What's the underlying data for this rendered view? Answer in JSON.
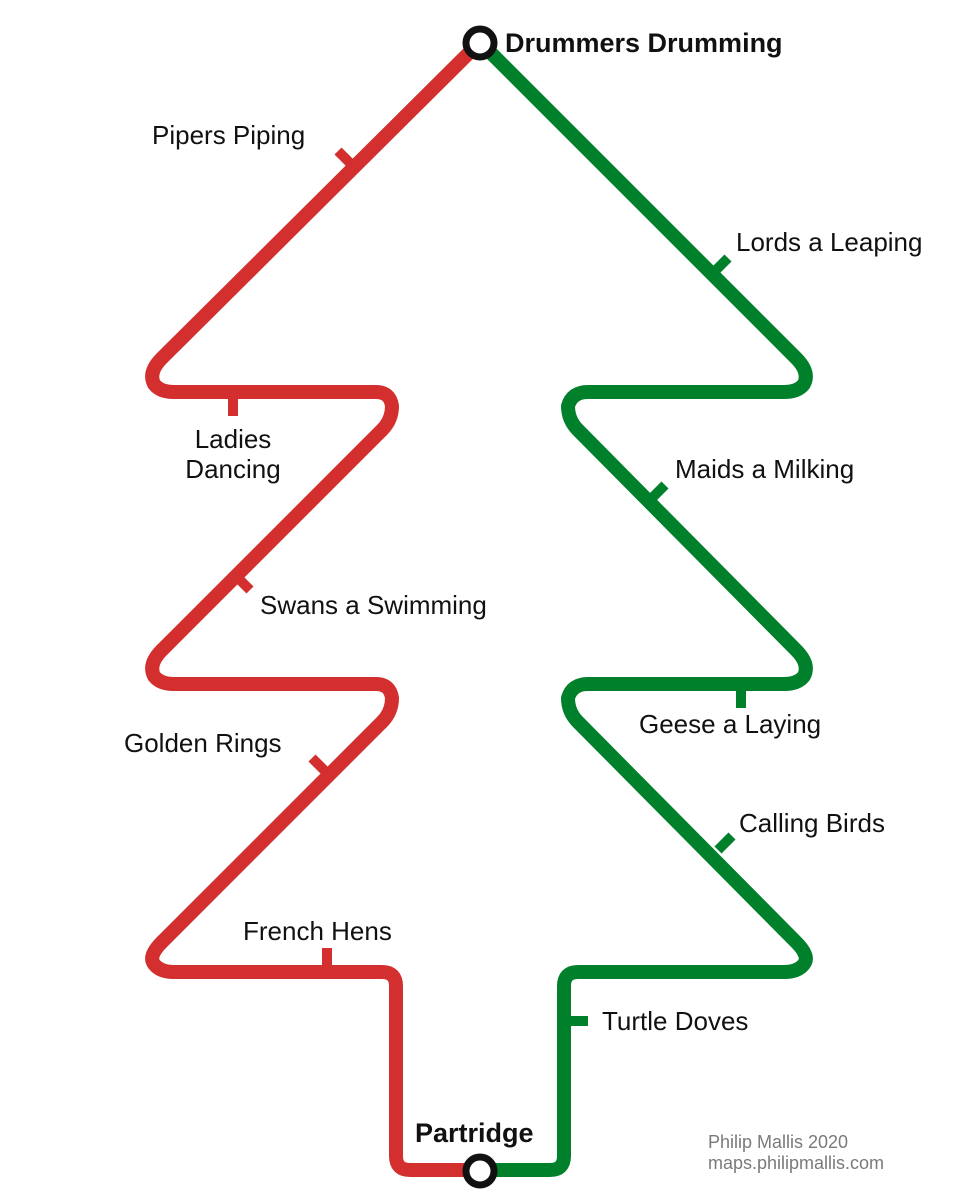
{
  "colors": {
    "red_line": "#d32f2f",
    "green_line": "#00802b",
    "terminal_stroke": "#111111",
    "text": "#111111",
    "credit_text": "#7a7a7a"
  },
  "lines": {
    "red": "red-line",
    "green": "green-line"
  },
  "terminals": {
    "top": "Drummers Drumming",
    "bottom": "Partridge"
  },
  "stations": {
    "pipers_piping": "Pipers Piping",
    "lords_a_leaping": "Lords a Leaping",
    "ladies_dancing_line1": "Ladies",
    "ladies_dancing_line2": "Dancing",
    "maids_a_milking": "Maids a Milking",
    "swans_a_swimming": "Swans a Swimming",
    "geese_a_laying": "Geese a Laying",
    "golden_rings": "Golden Rings",
    "calling_birds": "Calling Birds",
    "french_hens": "French Hens",
    "turtle_doves": "Turtle Doves"
  },
  "credit": {
    "author": "Philip Mallis 2020",
    "site": "maps.philipmallis.com"
  }
}
